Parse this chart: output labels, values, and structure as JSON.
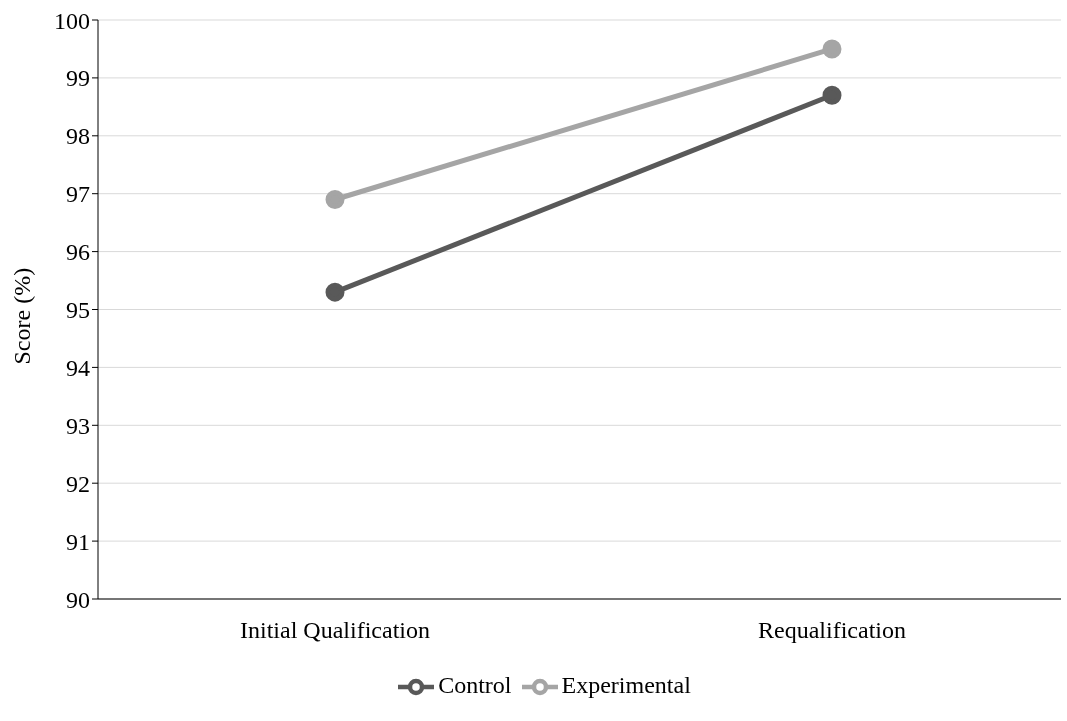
{
  "chart_data": {
    "type": "line",
    "ylabel": "Score (%)",
    "categories": [
      "Initial Qualification",
      "Requalification"
    ],
    "series": [
      {
        "name": "Control",
        "color": "#595959",
        "values": [
          95.3,
          98.7
        ]
      },
      {
        "name": "Experimental",
        "color": "#a5a5a5",
        "values": [
          96.9,
          99.5
        ]
      }
    ],
    "ylim": [
      90,
      100
    ],
    "yticks": [
      90,
      91,
      92,
      93,
      94,
      95,
      96,
      97,
      98,
      99,
      100
    ],
    "grid": "y",
    "legend": "bottom",
    "marker": "circle",
    "line_style": "solid"
  }
}
